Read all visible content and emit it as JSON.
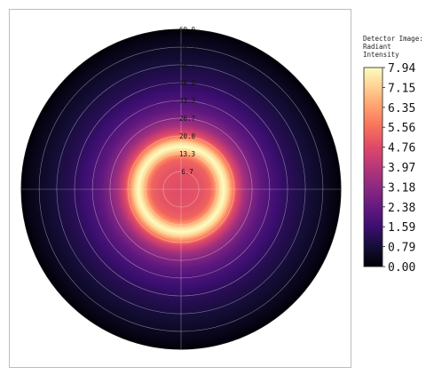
{
  "chart_data": {
    "type": "heatmap",
    "subtype": "polar-intensity-map",
    "colormap": "magma",
    "legend": {
      "title_lines": [
        "Detector Image:",
        "Radiant",
        "Intensity"
      ],
      "placement": "right",
      "ticks": [
        "7.94",
        "7.15",
        "6.35",
        "5.56",
        "4.76",
        "3.97",
        "3.18",
        "2.38",
        "1.59",
        "0.79",
        "0.00"
      ],
      "range": [
        0.0,
        7.94
      ]
    },
    "radial_axis": {
      "range": [
        0,
        60
      ],
      "ticks": [
        "6.7",
        "13.3",
        "20.0",
        "26.7",
        "33.3",
        "40.0",
        "46.7",
        "53.3",
        "60.0"
      ],
      "grid": true
    },
    "angular_grid": true,
    "radial_profile": [
      {
        "r": 0,
        "intensity": 4.8
      },
      {
        "r": 4,
        "intensity": 4.9
      },
      {
        "r": 8,
        "intensity": 5.0
      },
      {
        "r": 11,
        "intensity": 5.3
      },
      {
        "r": 13,
        "intensity": 6.2
      },
      {
        "r": 14.5,
        "intensity": 7.3
      },
      {
        "r": 16,
        "intensity": 7.94
      },
      {
        "r": 17.5,
        "intensity": 7.3
      },
      {
        "r": 19,
        "intensity": 6.2
      },
      {
        "r": 21,
        "intensity": 4.8
      },
      {
        "r": 24,
        "intensity": 3.6
      },
      {
        "r": 27,
        "intensity": 2.9
      },
      {
        "r": 30,
        "intensity": 2.3
      },
      {
        "r": 35,
        "intensity": 1.75
      },
      {
        "r": 40,
        "intensity": 1.3
      },
      {
        "r": 46,
        "intensity": 0.95
      },
      {
        "r": 52,
        "intensity": 0.6
      },
      {
        "r": 57,
        "intensity": 0.3
      },
      {
        "r": 60,
        "intensity": 0.05
      }
    ]
  }
}
